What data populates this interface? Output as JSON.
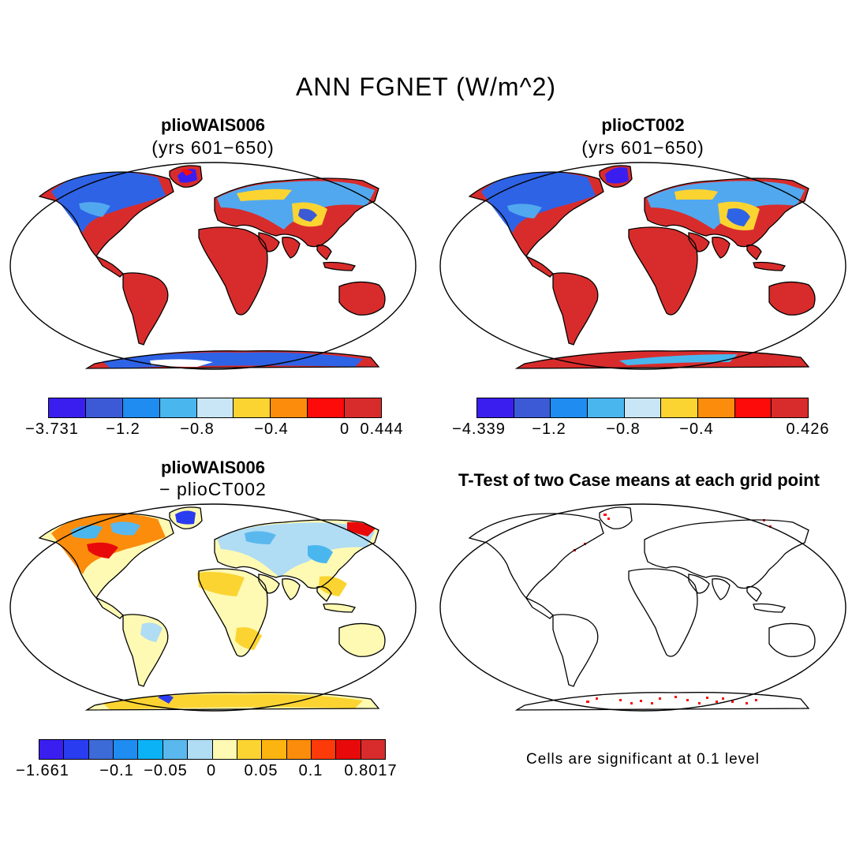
{
  "main_title": "ANN FGNET (W/m^2)",
  "panels": [
    {
      "title": "plioWAIS006",
      "subtitle": "(yrs 601−650)",
      "colorbar": {
        "colors": [
          "#3a1ef0",
          "#3c5ad6",
          "#1e8cf0",
          "#4ab6ee",
          "#c8e6f6",
          "#fcd432",
          "#fb8c0c",
          "#fd0a0a",
          "#d82c2c"
        ],
        "labels": [
          "−3.731",
          "−1.2",
          "−0.8",
          "−0.4",
          "0",
          "0.444"
        ]
      }
    },
    {
      "title": "plioCT002",
      "subtitle": "(yrs 601−650)",
      "colorbar": {
        "colors": [
          "#3a1ef0",
          "#3c5ad6",
          "#1e8cf0",
          "#4ab6ee",
          "#c8e6f6",
          "#fcd432",
          "#fb8c0c",
          "#fd0a0a",
          "#d82c2c"
        ],
        "labels": [
          "−4.339",
          "−1.2",
          "−0.8",
          "−0.4",
          "0.426"
        ]
      }
    },
    {
      "title": "plioWAIS006",
      "subtitle": "− plioCT002",
      "colorbar": {
        "colors": [
          "#3a1ef0",
          "#2a3cf0",
          "#3c6ad6",
          "#1e8cf0",
          "#0cb2f6",
          "#5ab8ee",
          "#b0dcf4",
          "#fefab4",
          "#fcd432",
          "#fcb410",
          "#fb8c0c",
          "#fd3a0a",
          "#e80a0a",
          "#d82c2c"
        ],
        "labels": [
          "−1.661",
          "−0.1",
          "−0.05",
          "0",
          "0.05",
          "0.1",
          "0.8017"
        ]
      }
    },
    {
      "title": "T-Test of two Case means at each grid point",
      "note": "Cells are significant at 0.1 level"
    }
  ]
}
